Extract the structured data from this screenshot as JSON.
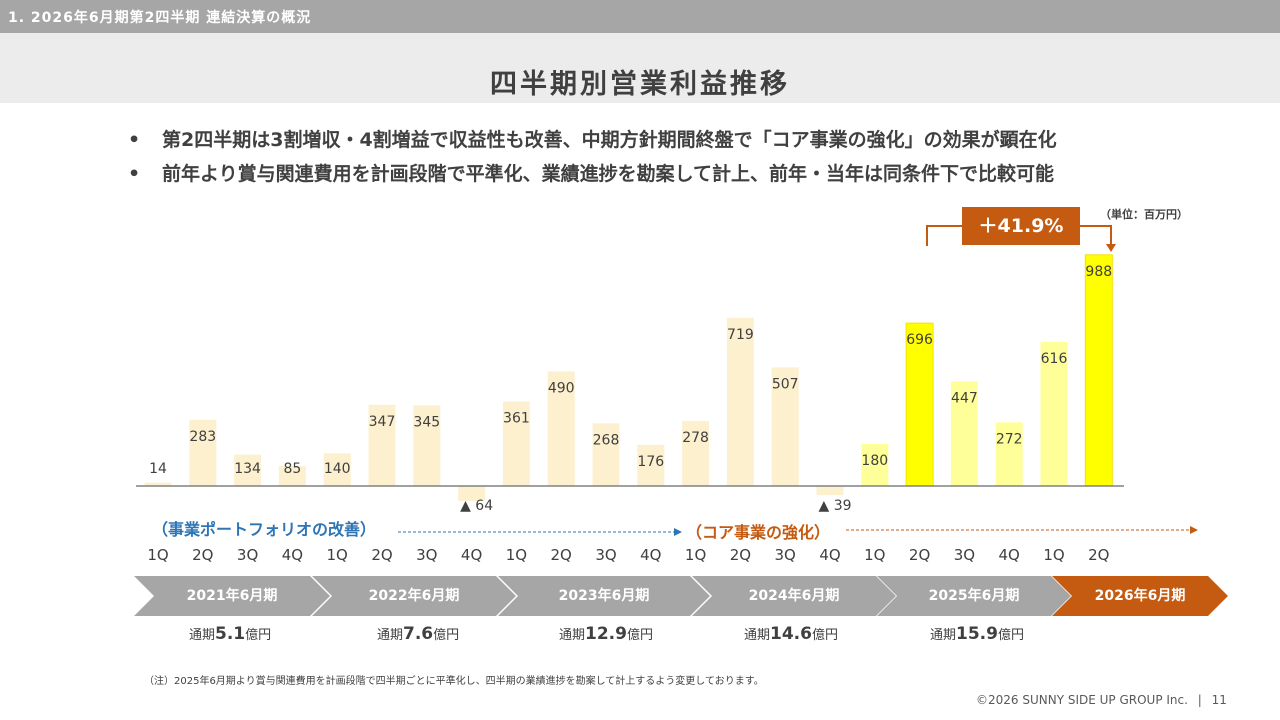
{
  "header": {
    "section": "1. 2026年6月期第2四半期 連結決算の概況",
    "title": "四半期別営業利益推移"
  },
  "bullets": [
    "第2四半期は3割増収・4割増益で収益性も改善、中期方針期間終盤で「コア事業の強化」の効果が顕在化",
    "前年より賞与関連費用を計画段階で平準化、業績進捗を勘案して計上、前年・当年は同条件下で比較可能"
  ],
  "bullet_symbol": "•",
  "unit_label": "（単位：百万円）",
  "growth_label": "＋41.9%",
  "phases": {
    "portfolio": "（事業ポートフォリオの改善）",
    "core": "（コア事業の強化）"
  },
  "fiscal_years": [
    {
      "label": "2021年6月期",
      "annual_prefix": "通期",
      "annual_value": "5.1",
      "annual_unit": "億円"
    },
    {
      "label": "2022年6月期",
      "annual_prefix": "通期",
      "annual_value": "7.6",
      "annual_unit": "億円"
    },
    {
      "label": "2023年6月期",
      "annual_prefix": "通期",
      "annual_value": "12.9",
      "annual_unit": "億円"
    },
    {
      "label": "2024年6月期",
      "annual_prefix": "通期",
      "annual_value": "14.6",
      "annual_unit": "億円"
    },
    {
      "label": "2025年6月期",
      "annual_prefix": "通期",
      "annual_value": "15.9",
      "annual_unit": "億円"
    },
    {
      "label": "2026年6月期",
      "annual_prefix": "",
      "annual_value": "",
      "annual_unit": ""
    }
  ],
  "chart_data": {
    "type": "bar",
    "categories": [
      "1Q",
      "2Q",
      "3Q",
      "4Q",
      "1Q",
      "2Q",
      "3Q",
      "4Q",
      "1Q",
      "2Q",
      "3Q",
      "4Q",
      "1Q",
      "2Q",
      "3Q",
      "4Q",
      "1Q",
      "2Q",
      "3Q",
      "4Q",
      "1Q",
      "2Q"
    ],
    "values": [
      14,
      283,
      134,
      85,
      140,
      347,
      345,
      -64,
      361,
      490,
      268,
      176,
      278,
      719,
      507,
      -39,
      180,
      696,
      447,
      272,
      616,
      988
    ],
    "value_labels": [
      "14",
      "283",
      "134",
      "85",
      "140",
      "347",
      "345",
      "▲ 64",
      "361",
      "490",
      "268",
      "176",
      "278",
      "719",
      "507",
      "▲ 39",
      "180",
      "696",
      "447",
      "272",
      "616",
      "988"
    ],
    "colors": {
      "pale": "#fdf0cf",
      "light_yellow": "#ffff99",
      "bright_yellow": "#ffff00",
      "bright_yellow_border": "#f5e100",
      "axis": "#808080"
    },
    "bar_color_keys": [
      "pale",
      "pale",
      "pale",
      "pale",
      "pale",
      "pale",
      "pale",
      "pale",
      "pale",
      "pale",
      "pale",
      "pale",
      "pale",
      "pale",
      "pale",
      "pale",
      "light_yellow",
      "bright_yellow",
      "light_yellow",
      "light_yellow",
      "light_yellow",
      "bright_yellow"
    ],
    "ylim": [
      -80,
      1050
    ],
    "title": "",
    "xlabel": "",
    "ylabel": ""
  },
  "accent_colors": {
    "orange": "#c55a11",
    "blue": "#2e75b6",
    "grey_chevron": "#a6a6a6"
  },
  "note": "（注）2025年6月期より賞与関連費用を計画段階で四半期ごとに平準化し、四半期の業績進捗を勘案して計上するよう変更しております。",
  "footer": {
    "copyright": "©2026 SUNNY SIDE UP GROUP Inc.",
    "separator": "|",
    "page": "11"
  }
}
